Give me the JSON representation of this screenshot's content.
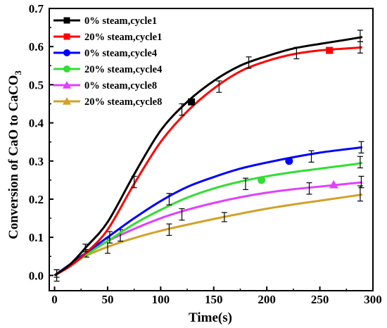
{
  "chart_data": {
    "type": "line",
    "xlabel": "Time(s)",
    "ylabel_main": "Conversion of CaO to CaCO",
    "ylabel_sub": "3",
    "xlim": [
      -5,
      300
    ],
    "ylim": [
      -0.04,
      0.7
    ],
    "x_ticks": [
      0,
      50,
      100,
      150,
      200,
      250,
      300
    ],
    "x_tick_labels": [
      "0",
      "50",
      "100",
      "150",
      "200",
      "250",
      "300"
    ],
    "y_ticks": [
      0.0,
      0.1,
      0.2,
      0.3,
      0.4,
      0.5,
      0.6,
      0.7
    ],
    "y_tick_labels": [
      "0.0",
      "0.1",
      "0.2",
      "0.3",
      "0.4",
      "0.5",
      "0.6",
      "0.7"
    ],
    "legend_position": "top-left",
    "series": [
      {
        "name": "0% steam,cycle1",
        "color": "#000000",
        "marker": "square",
        "x": [
          0,
          15,
          30,
          50,
          75,
          100,
          125,
          150,
          175,
          200,
          225,
          250,
          275,
          290
        ],
        "y": [
          0.0,
          0.03,
          0.075,
          0.14,
          0.265,
          0.38,
          0.455,
          0.51,
          0.55,
          0.575,
          0.595,
          0.607,
          0.618,
          0.625
        ],
        "marker_points": [
          [
            129,
            0.455
          ]
        ],
        "errorbars": [
          [
            2,
            0.0,
            0.015
          ],
          [
            29,
            0.072,
            0.01
          ],
          [
            75,
            0.245,
            0.015
          ],
          [
            120,
            0.435,
            0.015
          ],
          [
            155,
            0.495,
            0.015
          ],
          [
            183,
            0.558,
            0.015
          ],
          [
            228,
            0.583,
            0.015
          ],
          [
            288,
            0.628,
            0.015
          ]
        ]
      },
      {
        "name": "20% steam,cycle1",
        "color": "#ff0000",
        "marker": "square",
        "x": [
          0,
          15,
          30,
          50,
          75,
          100,
          125,
          150,
          175,
          200,
          225,
          250,
          275,
          290
        ],
        "y": [
          0.0,
          0.025,
          0.06,
          0.12,
          0.24,
          0.35,
          0.43,
          0.49,
          0.535,
          0.562,
          0.58,
          0.59,
          0.595,
          0.598
        ],
        "marker_points": [
          [
            259,
            0.59
          ]
        ],
        "errorbars": [
          [
            288,
            0.598,
            0.015
          ]
        ]
      },
      {
        "name": "0% steam,cycle4",
        "color": "#0000ff",
        "marker": "circle",
        "x": [
          0,
          15,
          30,
          50,
          75,
          100,
          125,
          150,
          175,
          200,
          225,
          250,
          275,
          290
        ],
        "y": [
          0.0,
          0.03,
          0.06,
          0.1,
          0.15,
          0.195,
          0.232,
          0.258,
          0.28,
          0.296,
          0.31,
          0.322,
          0.331,
          0.336
        ],
        "marker_points": [
          [
            221,
            0.3
          ]
        ],
        "errorbars": [
          [
            52,
            0.1,
            0.015
          ],
          [
            108,
            0.2,
            0.015
          ],
          [
            242,
            0.312,
            0.015
          ],
          [
            289,
            0.336,
            0.015
          ]
        ]
      },
      {
        "name": "20% steam,cycle4",
        "color": "#33dd33",
        "marker": "circle",
        "x": [
          0,
          15,
          30,
          50,
          75,
          100,
          125,
          150,
          175,
          200,
          225,
          250,
          275,
          290
        ],
        "y": [
          0.0,
          0.025,
          0.055,
          0.09,
          0.135,
          0.172,
          0.204,
          0.228,
          0.246,
          0.26,
          0.271,
          0.28,
          0.289,
          0.295
        ],
        "marker_points": [
          [
            195,
            0.25
          ]
        ],
        "errorbars": [
          [
            180,
            0.24,
            0.015
          ],
          [
            288,
            0.297,
            0.015
          ]
        ]
      },
      {
        "name": "0% steam,cycle8",
        "color": "#e040ff",
        "marker": "triangle",
        "x": [
          0,
          15,
          30,
          50,
          75,
          100,
          125,
          150,
          175,
          200,
          225,
          250,
          275,
          290
        ],
        "y": [
          0.0,
          0.03,
          0.058,
          0.09,
          0.122,
          0.15,
          0.172,
          0.19,
          0.205,
          0.217,
          0.226,
          0.233,
          0.24,
          0.244
        ],
        "marker_points": [
          [
            263,
            0.238
          ]
        ],
        "errorbars": [
          [
            30,
            0.058,
            0.01
          ],
          [
            62,
            0.105,
            0.015
          ],
          [
            120,
            0.16,
            0.015
          ],
          [
            240,
            0.228,
            0.015
          ],
          [
            289,
            0.245,
            0.015
          ]
        ]
      },
      {
        "name": "20% steam,cycle8",
        "color": "#d4a028",
        "marker": "triangle",
        "x": [
          0,
          15,
          30,
          50,
          75,
          100,
          125,
          150,
          175,
          200,
          225,
          250,
          275,
          290
        ],
        "y": [
          0.0,
          0.028,
          0.052,
          0.075,
          0.098,
          0.117,
          0.133,
          0.148,
          0.162,
          0.175,
          0.186,
          0.196,
          0.206,
          0.212
        ],
        "marker_points": [],
        "errorbars": [
          [
            2,
            0.005,
            0.01
          ],
          [
            50,
            0.078,
            0.02
          ],
          [
            108,
            0.12,
            0.015
          ],
          [
            160,
            0.153,
            0.012
          ],
          [
            288,
            0.215,
            0.02
          ]
        ]
      }
    ]
  }
}
